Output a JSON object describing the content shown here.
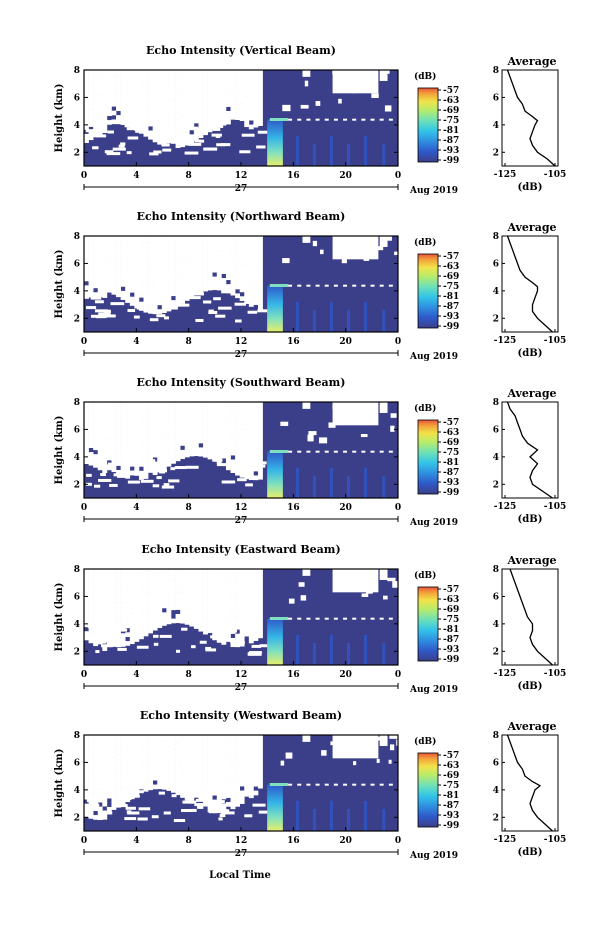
{
  "chart_data": [
    {
      "type": "heatmap",
      "title": "Echo Intensity (Vertical Beam)",
      "ylabel": "Height (km)",
      "y_ticks": [
        "2",
        "4",
        "6",
        "8"
      ],
      "x_ticks": [
        "0",
        "4",
        "8",
        "12",
        "16",
        "20",
        "0"
      ],
      "day_label": "27",
      "date_label": "Aug 2019",
      "colorbar": {
        "unit": "(dB)",
        "ticks": [
          "-57",
          "-63",
          "-69",
          "-75",
          "-81",
          "-87",
          "-93",
          "-99"
        ]
      },
      "profile": {
        "title": "Average",
        "x_ticks": [
          "-125",
          "-105"
        ],
        "y_ticks": [
          "2",
          "4",
          "6",
          "8"
        ],
        "xlabel": "(dB)",
        "xlim": [
          -125,
          -105
        ],
        "ylim": [
          1,
          8
        ],
        "heights": [
          1,
          1.5,
          2,
          2.5,
          3,
          3.5,
          4,
          4.3,
          4.6,
          5,
          5.5,
          6,
          6.5,
          7,
          7.5,
          8
        ],
        "values": [
          -105,
          -108,
          -112,
          -114,
          -115,
          -114,
          -113,
          -112,
          -114,
          -117,
          -118,
          -120,
          -121,
          -122,
          -123,
          -124
        ]
      }
    },
    {
      "type": "heatmap",
      "title": "Echo Intensity (Northward Beam)",
      "ylabel": "Height (km)",
      "y_ticks": [
        "2",
        "4",
        "6",
        "8"
      ],
      "x_ticks": [
        "0",
        "4",
        "8",
        "12",
        "16",
        "20",
        "0"
      ],
      "day_label": "27",
      "date_label": "Aug 2019",
      "colorbar": {
        "unit": "(dB)",
        "ticks": [
          "-57",
          "-63",
          "-69",
          "-75",
          "-81",
          "-87",
          "-93",
          "-99"
        ]
      },
      "profile": {
        "title": "Average",
        "x_ticks": [
          "-125",
          "-105"
        ],
        "y_ticks": [
          "2",
          "4",
          "6",
          "8"
        ],
        "xlabel": "(dB)",
        "xlim": [
          -125,
          -105
        ],
        "ylim": [
          1,
          8
        ],
        "heights": [
          1,
          1.5,
          2,
          2.5,
          3,
          3.5,
          4,
          4.3,
          4.6,
          5,
          5.5,
          6,
          6.5,
          7,
          7.5,
          8
        ],
        "values": [
          -106,
          -109,
          -112,
          -114,
          -114,
          -113,
          -112,
          -112,
          -114,
          -117,
          -119,
          -120,
          -121,
          -122,
          -123,
          -124
        ]
      }
    },
    {
      "type": "heatmap",
      "title": "Echo Intensity (Southward Beam)",
      "ylabel": "Height (km)",
      "y_ticks": [
        "2",
        "4",
        "6",
        "8"
      ],
      "x_ticks": [
        "0",
        "4",
        "8",
        "12",
        "16",
        "20",
        "0"
      ],
      "day_label": "27",
      "date_label": "Aug 2019",
      "colorbar": {
        "unit": "(dB)",
        "ticks": [
          "-57",
          "-63",
          "-69",
          "-75",
          "-81",
          "-87",
          "-93",
          "-99"
        ]
      },
      "profile": {
        "title": "Average",
        "x_ticks": [
          "-125",
          "-105"
        ],
        "y_ticks": [
          "2",
          "4",
          "6",
          "8"
        ],
        "xlabel": "(dB)",
        "xlim": [
          -125,
          -105
        ],
        "ylim": [
          1,
          8
        ],
        "heights": [
          1,
          1.5,
          2,
          2.5,
          3,
          3.5,
          4,
          4.5,
          5,
          5.5,
          6,
          6.5,
          7,
          7.5,
          8
        ],
        "values": [
          -106,
          -110,
          -114,
          -115,
          -114,
          -112,
          -115,
          -112,
          -116,
          -118,
          -119,
          -120,
          -121,
          -123,
          -124
        ]
      }
    },
    {
      "type": "heatmap",
      "title": "Echo Intensity (Eastward Beam)",
      "ylabel": "Height (km)",
      "y_ticks": [
        "2",
        "4",
        "6",
        "8"
      ],
      "x_ticks": [
        "0",
        "4",
        "8",
        "12",
        "16",
        "20",
        "0"
      ],
      "day_label": "27",
      "date_label": "Aug 2019",
      "colorbar": {
        "unit": "(dB)",
        "ticks": [
          "-57",
          "-63",
          "-69",
          "-75",
          "-81",
          "-87",
          "-93",
          "-99"
        ]
      },
      "profile": {
        "title": "Average",
        "x_ticks": [
          "-125",
          "-105"
        ],
        "y_ticks": [
          "2",
          "4",
          "6",
          "8"
        ],
        "xlabel": "(dB)",
        "xlim": [
          -125,
          -105
        ],
        "ylim": [
          1,
          8
        ],
        "heights": [
          1,
          1.5,
          2,
          2.5,
          3,
          3.5,
          4,
          4.5,
          5,
          5.5,
          6,
          6.5,
          7,
          7.5,
          8
        ],
        "values": [
          -106,
          -109,
          -112,
          -114,
          -115,
          -114,
          -114,
          -116,
          -117,
          -118,
          -119,
          -120,
          -121,
          -122,
          -123
        ]
      }
    },
    {
      "type": "heatmap",
      "title": "Echo Intensity (Westward Beam)",
      "ylabel": "Height (km)",
      "y_ticks": [
        "2",
        "4",
        "6",
        "8"
      ],
      "x_ticks": [
        "0",
        "4",
        "8",
        "12",
        "16",
        "20",
        "0"
      ],
      "day_label": "27",
      "date_label": "Aug 2019",
      "colorbar": {
        "unit": "(dB)",
        "ticks": [
          "-57",
          "-63",
          "-69",
          "-75",
          "-81",
          "-87",
          "-93",
          "-99"
        ]
      },
      "profile": {
        "title": "Average",
        "x_ticks": [
          "-125",
          "-105"
        ],
        "y_ticks": [
          "2",
          "4",
          "6",
          "8"
        ],
        "xlabel": "(dB)",
        "xlim": [
          -125,
          -105
        ],
        "ylim": [
          1,
          8
        ],
        "heights": [
          1,
          1.5,
          2,
          2.5,
          3,
          3.5,
          4,
          4.3,
          4.6,
          5,
          5.5,
          6,
          6.5,
          7,
          7.5,
          8
        ],
        "values": [
          -106,
          -109,
          -112,
          -114,
          -115,
          -114,
          -113,
          -111,
          -114,
          -117,
          -118,
          -120,
          -121,
          -122,
          -123,
          -124
        ]
      }
    }
  ],
  "figure": {
    "xlabel": "Local Time"
  },
  "colors": {
    "background_echo": "#3b3f8a",
    "colormap": [
      "#3b3f8a",
      "#2f58c8",
      "#2f8fe0",
      "#33c4e8",
      "#6de0b8",
      "#b8ec6a",
      "#f1e24a",
      "#f4a43a",
      "#e8553a"
    ]
  }
}
